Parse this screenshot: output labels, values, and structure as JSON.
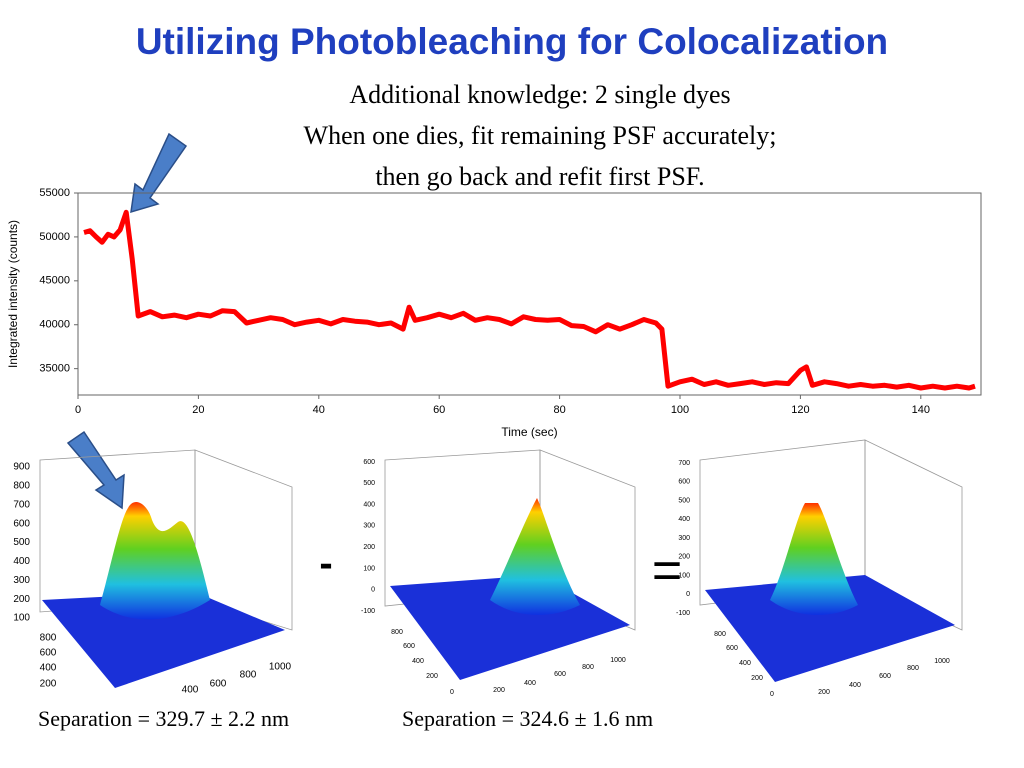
{
  "slide": {
    "title": "Utilizing Photobleaching for Colocalization",
    "text_lines": [
      "Additional knowledge: 2 single dyes",
      "When one dies, fit remaining PSF accurately;",
      "then go back and refit first PSF."
    ],
    "operators": [
      "-",
      "="
    ],
    "separations": [
      "Separation =  329.7 ± 2.2 nm",
      "Separation = 324.6 ± 1.6 nm"
    ]
  },
  "chart_data": {
    "type": "line",
    "xlabel": "Time (sec)",
    "ylabel": "Integrated intensity (counts)",
    "color": "#ff0000",
    "x": [
      1,
      2,
      3,
      4,
      5,
      6,
      7,
      8,
      9,
      10,
      12,
      14,
      16,
      18,
      20,
      22,
      24,
      26,
      28,
      30,
      32,
      34,
      36,
      38,
      40,
      42,
      44,
      46,
      48,
      50,
      52,
      54,
      55,
      56,
      58,
      60,
      62,
      64,
      66,
      68,
      70,
      72,
      74,
      76,
      78,
      80,
      82,
      84,
      86,
      88,
      90,
      92,
      94,
      96,
      97,
      98,
      100,
      102,
      104,
      106,
      108,
      110,
      112,
      114,
      116,
      118,
      120,
      121,
      122,
      124,
      126,
      128,
      130,
      132,
      134,
      136,
      138,
      140,
      142,
      144,
      146,
      148,
      149
    ],
    "values": [
      50500,
      50700,
      50000,
      49400,
      50300,
      50000,
      50800,
      52800,
      47500,
      41000,
      41500,
      40900,
      41100,
      40800,
      41200,
      41000,
      41600,
      41500,
      40200,
      40500,
      40800,
      40600,
      40000,
      40300,
      40500,
      40100,
      40600,
      40400,
      40300,
      40000,
      40200,
      39500,
      42000,
      40500,
      40800,
      41200,
      40800,
      41300,
      40500,
      40800,
      40600,
      40100,
      40900,
      40600,
      40500,
      40600,
      39900,
      39800,
      39200,
      40000,
      39500,
      40000,
      40600,
      40200,
      39500,
      33000,
      33500,
      33800,
      33200,
      33500,
      33100,
      33300,
      33500,
      33200,
      33400,
      33300,
      34800,
      35200,
      33100,
      33500,
      33300,
      33000,
      33200,
      33000,
      33100,
      32900,
      33100,
      32800,
      33000,
      32800,
      33000,
      32800,
      33000
    ],
    "xlim": [
      0,
      150
    ],
    "ylim": [
      32000,
      55000
    ],
    "xticks": [
      0,
      20,
      40,
      60,
      80,
      100,
      120,
      140
    ],
    "yticks": [
      35000,
      40000,
      45000,
      50000,
      55000
    ]
  },
  "surface_plots": [
    {
      "zticks": [
        900,
        800,
        700,
        600,
        500,
        400,
        300,
        200,
        100
      ],
      "yticks": [
        800,
        600,
        400,
        200
      ],
      "xticks": [
        400,
        600,
        800,
        1000
      ]
    },
    {
      "zticks": [
        600,
        500,
        400,
        300,
        200,
        100,
        0,
        -100
      ],
      "yticks": [
        800,
        600,
        400,
        200,
        0
      ],
      "xticks": [
        200,
        400,
        600,
        800,
        1000
      ]
    },
    {
      "zticks": [
        700,
        600,
        500,
        400,
        300,
        200,
        100,
        0,
        -100
      ],
      "yticks": [
        800,
        600,
        400,
        200,
        0
      ],
      "xticks": [
        200,
        400,
        600,
        800,
        1000
      ]
    }
  ]
}
